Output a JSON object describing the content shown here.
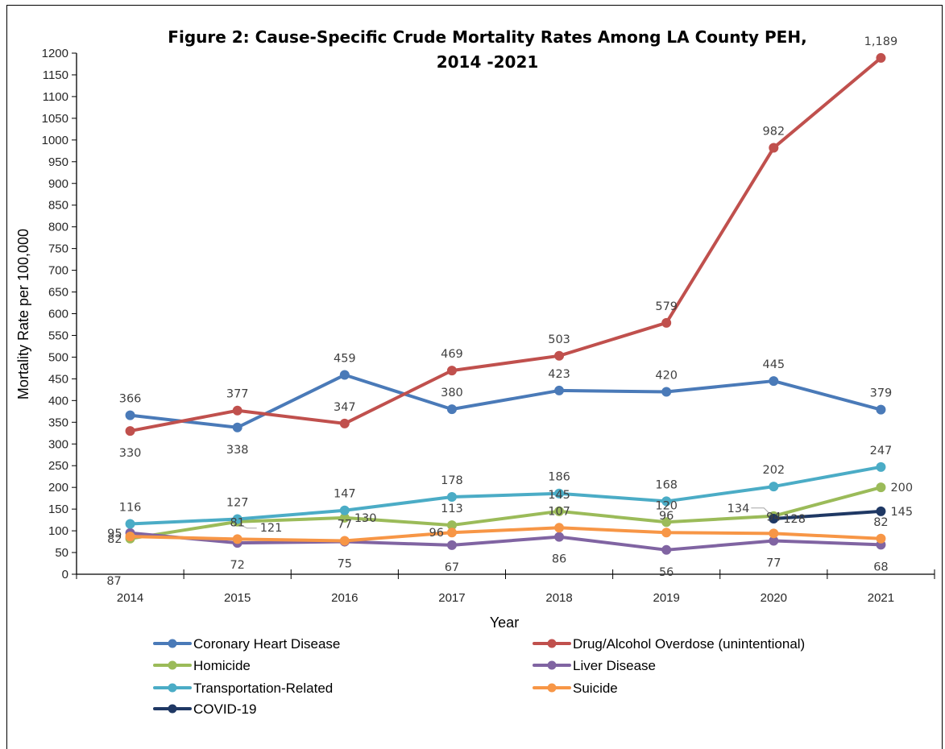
{
  "chart_data": {
    "type": "line",
    "title": "Figure 2: Cause-Specific Crude Mortality Rates Among LA County PEH,",
    "title_line2": "2014 -2021",
    "xlabel": "Year",
    "ylabel": "Mortality Rate per 100,000",
    "ylim": [
      0,
      1200
    ],
    "ytick_step": 50,
    "categories": [
      "2014",
      "2015",
      "2016",
      "2017",
      "2018",
      "2019",
      "2020",
      "2021"
    ],
    "series": [
      {
        "name": "Coronary Heart Disease",
        "color": "#4a7ab8",
        "values": [
          366,
          338,
          459,
          380,
          423,
          420,
          445,
          379
        ],
        "labels": [
          "366",
          "338",
          "459",
          "380",
          "423",
          "420",
          "445",
          "379"
        ]
      },
      {
        "name": "Drug/Alcohol Overdose (unintentional)",
        "color": "#c0504d",
        "values": [
          330,
          377,
          347,
          469,
          503,
          579,
          982,
          1189
        ],
        "labels": [
          "330",
          "377",
          "347",
          "469",
          "503",
          "579",
          "982",
          "1,189"
        ]
      },
      {
        "name": "Homicide",
        "color": "#9bbb59",
        "values": [
          82,
          121,
          130,
          113,
          145,
          120,
          134,
          200
        ],
        "labels": [
          "82",
          "121",
          "130",
          "113",
          "145",
          "120",
          "134",
          "200"
        ]
      },
      {
        "name": "Liver Disease",
        "color": "#8064a2",
        "values": [
          95,
          72,
          75,
          67,
          86,
          56,
          77,
          68
        ],
        "labels": [
          "95",
          "72",
          "75",
          "67",
          "86",
          "56",
          "77",
          "68"
        ]
      },
      {
        "name": "Transportation-Related",
        "color": "#4bacc6",
        "values": [
          116,
          127,
          147,
          178,
          186,
          168,
          202,
          247
        ],
        "labels": [
          "116",
          "127",
          "147",
          "178",
          "186",
          "168",
          "202",
          "247"
        ]
      },
      {
        "name": "Suicide",
        "color": "#f79646",
        "values": [
          87,
          81,
          77,
          96,
          107,
          96,
          94,
          82
        ],
        "labels": [
          "87",
          "81",
          "77",
          "96",
          "107",
          "96",
          "94",
          "82"
        ]
      },
      {
        "name": "COVID-19",
        "color": "#1f3864",
        "values": [
          null,
          null,
          null,
          null,
          null,
          null,
          128,
          145
        ],
        "labels": [
          null,
          null,
          null,
          null,
          null,
          null,
          "128",
          "145"
        ]
      }
    ],
    "grid": false,
    "legend_position": "bottom"
  }
}
